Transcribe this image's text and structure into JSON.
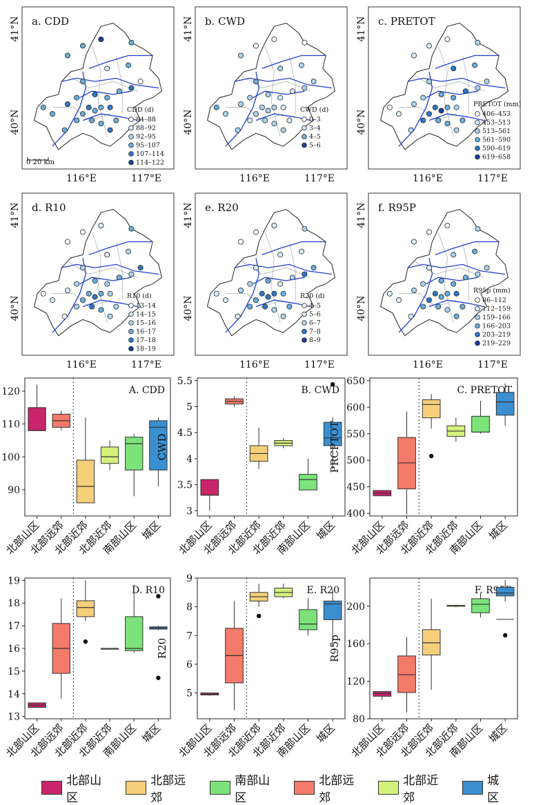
{
  "colors": {
    "bmountain": "#c8256a",
    "bfar": "#f5cf7a",
    "smountain": "#7be37a",
    "bfar2": "#f47a6a",
    "bnear": "#d4f27a",
    "city": "#3a8fd0"
  },
  "legend": [
    {
      "label": "北部山区",
      "color": "#c8256a"
    },
    {
      "label": "北部远郊",
      "color": "#f5cf7a"
    },
    {
      "label": "南部山区",
      "color": "#7be37a"
    },
    {
      "label": "北部远郊",
      "color": "#f47a6a"
    },
    {
      "label": "北部近郊",
      "color": "#d4f27a"
    },
    {
      "label": "城区",
      "color": "#3a8fd0"
    }
  ],
  "maps": [
    {
      "title": "a. CDD",
      "legend_title": "CDD (d)",
      "classes": [
        "84–88",
        "88–92",
        "92–95",
        "95–107",
        "107–114",
        "114–122"
      ],
      "xticks": [
        "116°E",
        "117°E"
      ],
      "yticks": [
        "41°N",
        "40°N"
      ],
      "scale": "0  20 km"
    },
    {
      "title": "b. CWD",
      "legend_title": "CWD (d)",
      "classes": [
        "0–3",
        "3–4",
        "4–5",
        "5–6"
      ],
      "xticks": [
        "116°E",
        "117°E"
      ],
      "yticks": [
        "41°N",
        "40°N"
      ]
    },
    {
      "title": "c. PRETOT",
      "legend_title": "PRETOT (mm)",
      "classes": [
        "406–453",
        "453–513",
        "513–561",
        "561–590",
        "590–619",
        "619–658"
      ],
      "xticks": [
        "116°E",
        "117°E"
      ],
      "yticks": [
        "41°N",
        "40°N"
      ]
    },
    {
      "title": "d. R10",
      "legend_title": "R10 (d)",
      "classes": [
        "13–14",
        "14–15",
        "15–16",
        "16–17",
        "17–18",
        "18–19"
      ],
      "xticks": [
        "116°E",
        "117°E"
      ],
      "yticks": [
        "41°N",
        "40°N"
      ]
    },
    {
      "title": "e. R20",
      "legend_title": "R20 (d)",
      "classes": [
        "4–5",
        "5–6",
        "6–7",
        "7–8",
        "8–9"
      ],
      "xticks": [
        "116°E",
        "117°E"
      ],
      "yticks": [
        "41°N",
        "40°N"
      ]
    },
    {
      "title": "f. R95P",
      "legend_title": "R95p (mm)",
      "classes": [
        "86–112",
        "112–159",
        "159–166",
        "166–203",
        "203–219",
        "219–229"
      ],
      "xticks": [
        "116°E",
        "117°E"
      ],
      "yticks": [
        "41°N",
        "40°N"
      ]
    }
  ],
  "chart_data": [
    {
      "type": "box",
      "title": "A. CDD",
      "ylabel": "",
      "ylim": [
        82,
        124
      ],
      "yticks": [
        90,
        100,
        110,
        120
      ],
      "categories": [
        "北部山区",
        "北部远郊",
        "北部近郊",
        "北部近郊",
        "南部山区",
        "城区"
      ],
      "boxes": [
        {
          "min": 108,
          "q1": 108,
          "median": 108,
          "q3": 115,
          "max": 122,
          "color": "bmountain"
        },
        {
          "min": 108,
          "q1": 109,
          "median": 111,
          "q3": 113,
          "max": 114,
          "color": "bfar2"
        },
        {
          "min": 86,
          "q1": 86,
          "median": 91,
          "q3": 99,
          "max": 112,
          "color": "bfar"
        },
        {
          "min": 96,
          "q1": 98,
          "median": 100,
          "q3": 103,
          "max": 105,
          "color": "bnear"
        },
        {
          "min": 88,
          "q1": 96,
          "median": 104,
          "q3": 106,
          "max": 107,
          "color": "smountain"
        },
        {
          "min": 91,
          "q1": 96,
          "median": 109,
          "q3": 111,
          "max": 112,
          "color": "city"
        }
      ],
      "outliers": []
    },
    {
      "type": "box",
      "title": "B. CWD",
      "ylabel": "CWD",
      "ylim": [
        2.9,
        5.55
      ],
      "yticks": [
        3.0,
        3.5,
        4.0,
        4.5,
        5.0,
        5.5
      ],
      "categories": [
        "北部山区",
        "北部远郊",
        "北部近郊",
        "北部近郊",
        "南部山区",
        "城区"
      ],
      "boxes": [
        {
          "min": 3.0,
          "q1": 3.3,
          "median": 3.3,
          "q3": 3.6,
          "max": 3.6,
          "color": "bmountain"
        },
        {
          "min": 5.0,
          "q1": 5.05,
          "median": 5.1,
          "q3": 5.15,
          "max": 5.2,
          "color": "bfar2"
        },
        {
          "min": 3.8,
          "q1": 3.95,
          "median": 4.1,
          "q3": 4.25,
          "max": 4.6,
          "color": "bfar"
        },
        {
          "min": 4.2,
          "q1": 4.25,
          "median": 4.3,
          "q3": 4.35,
          "max": 4.4,
          "color": "bnear"
        },
        {
          "min": 3.4,
          "q1": 3.4,
          "median": 3.6,
          "q3": 3.7,
          "max": 4.0,
          "color": "smountain"
        },
        {
          "min": 3.8,
          "q1": 4.25,
          "median": 4.4,
          "q3": 4.7,
          "max": 4.8,
          "color": "city"
        }
      ],
      "outliers": [
        {
          "box": 5,
          "value": 5.43
        }
      ]
    },
    {
      "type": "box",
      "title": "C. PRETOT",
      "ylabel": "PRCPTOT",
      "ylim": [
        395,
        655
      ],
      "yticks": [
        400,
        450,
        500,
        550,
        600,
        650
      ],
      "categories": [
        "北部山区",
        "北部远郊",
        "北部近郊",
        "北部近郊",
        "南部山区",
        "城区"
      ],
      "boxes": [
        {
          "min": 433,
          "q1": 433,
          "median": 438,
          "q3": 443,
          "max": 443,
          "color": "bmountain"
        },
        {
          "min": 398,
          "q1": 446,
          "median": 495,
          "q3": 543,
          "max": 592,
          "color": "bfar2"
        },
        {
          "min": 560,
          "q1": 580,
          "median": 605,
          "q3": 614,
          "max": 625,
          "color": "bfar"
        },
        {
          "min": 535,
          "q1": 545,
          "median": 555,
          "q3": 565,
          "max": 580,
          "color": "bnear"
        },
        {
          "min": 550,
          "q1": 553,
          "median": 553,
          "q3": 583,
          "max": 612,
          "color": "smountain"
        },
        {
          "min": 565,
          "q1": 585,
          "median": 610,
          "q3": 628,
          "max": 645,
          "color": "city"
        }
      ],
      "outliers": [
        {
          "box": 2,
          "value": 508
        }
      ]
    },
    {
      "type": "box",
      "title": "D. R10",
      "ylabel": "",
      "ylim": [
        12.9,
        19.1
      ],
      "yticks": [
        13,
        14,
        15,
        16,
        17,
        18,
        19
      ],
      "categories": [
        "北部山区",
        "北部远郊",
        "北部近郊",
        "北部近郊",
        "南部山区",
        "城区"
      ],
      "boxes": [
        {
          "min": 13.4,
          "q1": 13.4,
          "median": 13.5,
          "q3": 13.6,
          "max": 13.6,
          "color": "bmountain"
        },
        {
          "min": 13.8,
          "q1": 14.9,
          "median": 16.0,
          "q3": 17.1,
          "max": 18.2,
          "color": "bfar2"
        },
        {
          "min": 17.2,
          "q1": 17.4,
          "median": 17.8,
          "q3": 18.1,
          "max": 19.0,
          "color": "bfar"
        },
        {
          "min": 16.0,
          "q1": 16.0,
          "median": 16.0,
          "q3": 16.0,
          "max": 16.0,
          "color": "bnear"
        },
        {
          "min": 15.8,
          "q1": 15.9,
          "median": 16.0,
          "q3": 17.4,
          "max": 18.8,
          "color": "smountain"
        },
        {
          "min": 16.8,
          "q1": 16.85,
          "median": 16.9,
          "q3": 16.95,
          "max": 17.0,
          "color": "city"
        }
      ],
      "outliers": [
        {
          "box": 2,
          "value": 16.3
        },
        {
          "box": 5,
          "value": 18.3
        },
        {
          "box": 5,
          "value": 14.7
        }
      ]
    },
    {
      "type": "box",
      "title": "E. R20",
      "ylabel": "R20",
      "ylim": [
        4.1,
        9.0
      ],
      "yticks": [
        5,
        6,
        7,
        8,
        9
      ],
      "categories": [
        "北部山区",
        "北部远郊",
        "北部近郊",
        "北部近郊",
        "南部山区",
        "城区"
      ],
      "boxes": [
        {
          "min": 4.9,
          "q1": 4.93,
          "median": 4.96,
          "q3": 5.0,
          "max": 5.0,
          "color": "bmountain"
        },
        {
          "min": 4.4,
          "q1": 5.35,
          "median": 6.3,
          "q3": 7.25,
          "max": 8.2,
          "color": "bfar2"
        },
        {
          "min": 8.0,
          "q1": 8.2,
          "median": 8.35,
          "q3": 8.5,
          "max": 8.8,
          "color": "bfar"
        },
        {
          "min": 8.3,
          "q1": 8.35,
          "median": 8.5,
          "q3": 8.65,
          "max": 8.8,
          "color": "bnear"
        },
        {
          "min": 7.0,
          "q1": 7.2,
          "median": 7.4,
          "q3": 7.9,
          "max": 8.3,
          "color": "smountain"
        },
        {
          "min": 6.6,
          "q1": 7.55,
          "median": 8.1,
          "q3": 8.2,
          "max": 8.6,
          "color": "city"
        }
      ],
      "outliers": [
        {
          "box": 2,
          "value": 7.68
        }
      ]
    },
    {
      "type": "box",
      "title": "F. R95P",
      "ylabel": "R95p",
      "ylim": [
        80,
        230
      ],
      "yticks": [
        80,
        120,
        160,
        200
      ],
      "categories": [
        "北部山区",
        "北部远郊",
        "北部近郊",
        "北部近郊",
        "南部山区",
        "城区"
      ],
      "boxes": [
        {
          "min": 100,
          "q1": 104,
          "median": 107,
          "q3": 109,
          "max": 109,
          "color": "bmountain"
        },
        {
          "min": 87,
          "q1": 108,
          "median": 127,
          "q3": 147,
          "max": 167,
          "color": "bfar2"
        },
        {
          "min": 111,
          "q1": 148,
          "median": 161,
          "q3": 175,
          "max": 208,
          "color": "bfar"
        },
        {
          "min": 199,
          "q1": 200,
          "median": 200,
          "q3": 201,
          "max": 201,
          "color": "bnear"
        },
        {
          "min": 188,
          "q1": 193,
          "median": 202,
          "q3": 208,
          "max": 214,
          "color": "smountain"
        },
        {
          "min": 205,
          "q1": 211,
          "median": 214,
          "q3": 220,
          "max": 228,
          "color": "city"
        }
      ],
      "outliers": [
        {
          "box": 5,
          "value": 186,
          "as_line": true
        },
        {
          "box": 5,
          "value": 169
        }
      ]
    }
  ]
}
